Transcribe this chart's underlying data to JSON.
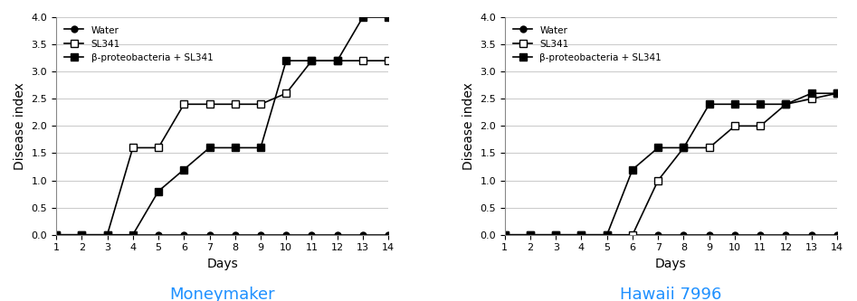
{
  "moneymaker": {
    "days": [
      1,
      2,
      3,
      4,
      5,
      6,
      7,
      8,
      9,
      10,
      11,
      12,
      13,
      14
    ],
    "water": [
      0,
      0,
      0,
      0,
      0,
      0,
      0,
      0,
      0,
      0,
      0,
      0,
      0,
      0
    ],
    "sl341": [
      0,
      0,
      0,
      1.6,
      1.6,
      2.4,
      2.4,
      2.4,
      2.4,
      2.6,
      3.2,
      3.2,
      3.2,
      3.2
    ],
    "beta_sl341": [
      0,
      0,
      0,
      0,
      0.8,
      1.2,
      1.6,
      1.6,
      1.6,
      3.2,
      3.2,
      3.2,
      4.0,
      4.0
    ]
  },
  "hawaii7996": {
    "days": [
      1,
      2,
      3,
      4,
      5,
      6,
      7,
      8,
      9,
      10,
      11,
      12,
      13,
      14
    ],
    "water": [
      0,
      0,
      0,
      0,
      0,
      0,
      0,
      0,
      0,
      0,
      0,
      0,
      0,
      0
    ],
    "sl341": [
      0,
      0,
      0,
      0,
      0,
      0,
      1.0,
      1.6,
      1.6,
      2.0,
      2.0,
      2.4,
      2.5,
      2.6
    ],
    "beta_sl341": [
      0,
      0,
      0,
      0,
      0,
      1.2,
      1.6,
      1.6,
      2.4,
      2.4,
      2.4,
      2.4,
      2.6,
      2.6
    ]
  },
  "ylabel": "Disease index",
  "xlabel": "Days",
  "ylim": [
    0,
    4
  ],
  "yticks": [
    0,
    0.5,
    1,
    1.5,
    2,
    2.5,
    3,
    3.5,
    4
  ],
  "legend_water": "Water",
  "legend_sl341": "SL341",
  "legend_beta": "β-proteobacteria + SL341",
  "title_left": "Moneymaker",
  "title_right": "Hawaii 7996",
  "title_color": "#1E90FF",
  "bg_color": "#ffffff",
  "line_color": "#000000"
}
